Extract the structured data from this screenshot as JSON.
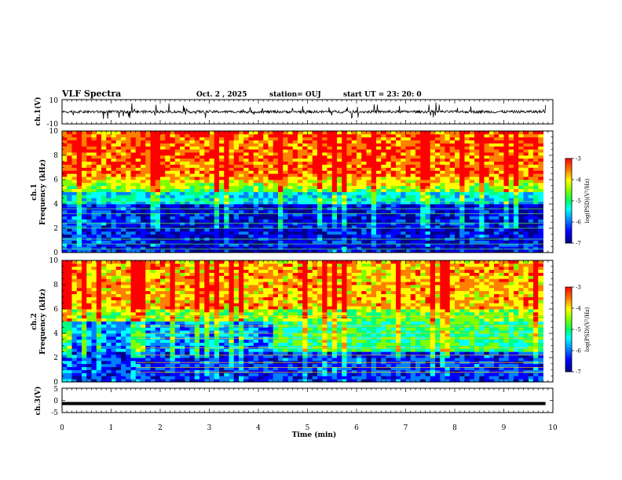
{
  "header": {
    "title": "VLF Spectra",
    "date": "Oct. 2 , 2025",
    "station": "station= OUJ",
    "start": "start UT = 23: 20: 0"
  },
  "colors": {
    "spectrum": [
      "#00008b",
      "#0000ff",
      "#0080ff",
      "#00ffff",
      "#00ff80",
      "#80ff00",
      "#ffff00",
      "#ff8000",
      "#ff0000"
    ]
  },
  "chart_data": [
    {
      "type": "line",
      "name": "ch1-waveform",
      "ylabel": "ch.1(V)",
      "ylim": [
        -10,
        10
      ],
      "yticks": [
        "10",
        "-10"
      ],
      "xlim": [
        0,
        10
      ],
      "baseline": 0
    },
    {
      "type": "heatmap",
      "name": "ch1-spectrogram",
      "ylabel_channel": "ch.1",
      "ylabel": "Frequency (kHz)",
      "ylim": [
        0,
        10
      ],
      "yticks": [
        "0",
        "2",
        "4",
        "6",
        "8",
        "10"
      ],
      "xlim": [
        0,
        9.8
      ],
      "colorbar": {
        "label": "log(PSD)(V²/Hz)",
        "range": [
          -7,
          -3
        ],
        "ticks": [
          "-3",
          "-4",
          "-5",
          "-6",
          "-7"
        ]
      }
    },
    {
      "type": "heatmap",
      "name": "ch2-spectrogram",
      "ylabel_channel": "ch.2",
      "ylabel": "Frequency (kHz)",
      "ylim": [
        0,
        10
      ],
      "yticks": [
        "0",
        "2",
        "4",
        "6",
        "8",
        "10"
      ],
      "xlim": [
        0,
        9.8
      ],
      "colorbar": {
        "label": "log(PSD)(V²/Hz)",
        "range": [
          -7,
          -3
        ],
        "ticks": [
          "-3",
          "-4",
          "-5",
          "-6",
          "-7"
        ]
      }
    },
    {
      "type": "line",
      "name": "ch3-waveform",
      "ylabel": "ch.3(V)",
      "ylim": [
        -5,
        5
      ],
      "yticks": [
        "5",
        "0",
        "-5"
      ],
      "xlim": [
        0,
        10
      ],
      "baseline": -1.3
    }
  ],
  "xaxis": {
    "label": "Time (min)",
    "ticks": [
      "0",
      "1",
      "2",
      "3",
      "4",
      "5",
      "6",
      "7",
      "8",
      "9",
      "10"
    ]
  }
}
